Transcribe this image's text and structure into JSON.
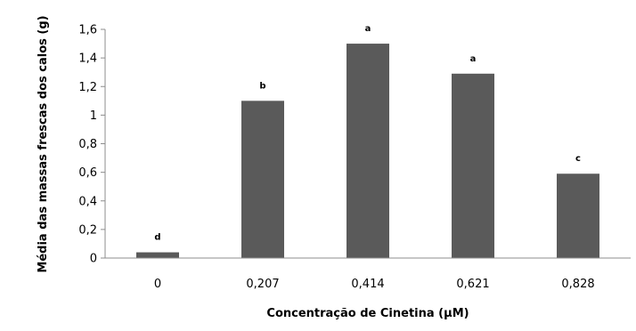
{
  "chart_data": {
    "type": "bar",
    "title": "",
    "xlabel": "Concentração de Cinetina (µM)",
    "ylabel": "Média das massas frescas dos calos (g)",
    "categories": [
      "0",
      "0,207",
      "0,414",
      "0,621",
      "0,828"
    ],
    "values": [
      0.04,
      1.1,
      1.5,
      1.29,
      0.59
    ],
    "significance_letters": [
      "d",
      "b",
      "a",
      "a",
      "c"
    ],
    "y_ticks": [
      "0",
      "0,2",
      "0,4",
      "0,6",
      "0,8",
      "1",
      "1,2",
      "1,4",
      "1,6"
    ],
    "ylim": [
      0,
      1.6
    ],
    "grid": false,
    "legend": "none",
    "bar_color": "#5a5a5a"
  }
}
